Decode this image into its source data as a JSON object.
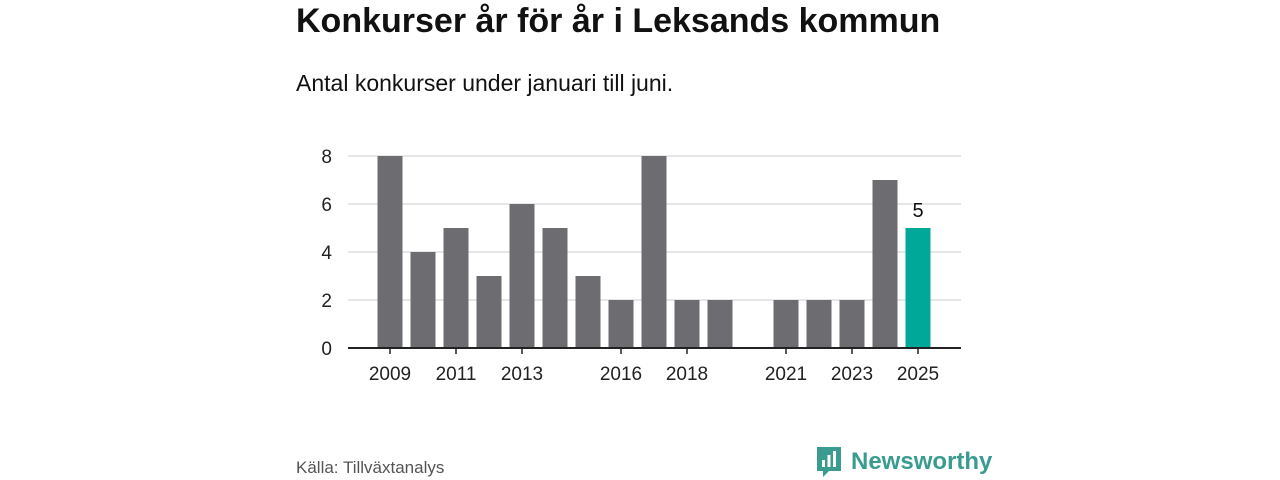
{
  "header": {
    "title": "Konkurser år för år i Leksands kommun",
    "subtitle": "Antal konkurser under januari till juni."
  },
  "chart_data": {
    "type": "bar",
    "categories": [
      "2009",
      "2010",
      "2011",
      "2012",
      "2013",
      "2014",
      "2015",
      "2016",
      "2017",
      "2018",
      "2019",
      "2020",
      "2021",
      "2022",
      "2023",
      "2024",
      "2025"
    ],
    "values": [
      8,
      4,
      5,
      3,
      6,
      5,
      3,
      2,
      8,
      2,
      2,
      0,
      2,
      2,
      2,
      7,
      5
    ],
    "xtick_labels": [
      "2009",
      "2011",
      "2013",
      "2016",
      "2018",
      "2021",
      "2023",
      "2025"
    ],
    "yticks": [
      0,
      2,
      4,
      6,
      8
    ],
    "ylim": [
      0,
      8
    ],
    "highlight": {
      "category": "2025",
      "label": "5"
    },
    "colors": {
      "bar": "#6d6c71",
      "highlight": "#00a89a",
      "grid": "#dddddd",
      "axis": "#222222"
    },
    "grid": true
  },
  "footer": {
    "source": "Källa: Tillväxtanalys",
    "brand": "Newsworthy",
    "brand_icon": "newsworthy-logo-icon",
    "brand_color": "#3a9c91"
  }
}
